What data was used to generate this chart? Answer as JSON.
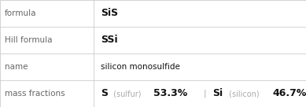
{
  "rows": [
    {
      "label": "formula",
      "value": "SiS",
      "value_type": "bold"
    },
    {
      "label": "Hill formula",
      "value": "SSi",
      "value_type": "bold"
    },
    {
      "label": "name",
      "value": "silicon monosulfide",
      "value_type": "normal"
    },
    {
      "label": "mass fractions",
      "value_type": "mass_fractions",
      "parts": [
        {
          "symbol": "S",
          "name": "sulfur",
          "percent": "53.3%"
        },
        {
          "symbol": "Si",
          "name": "silicon",
          "percent": "46.7%"
        }
      ]
    }
  ],
  "col_split": 0.305,
  "background": "#ffffff",
  "border_color": "#cccccc",
  "label_color": "#666666",
  "value_color": "#111111",
  "bold_color": "#111111",
  "symbol_color": "#111111",
  "name_color": "#aaaaaa",
  "separator_color": "#aaaaaa",
  "label_fontsize": 7.5,
  "value_fontsize": 7.5,
  "bold_fontsize": 9.0
}
